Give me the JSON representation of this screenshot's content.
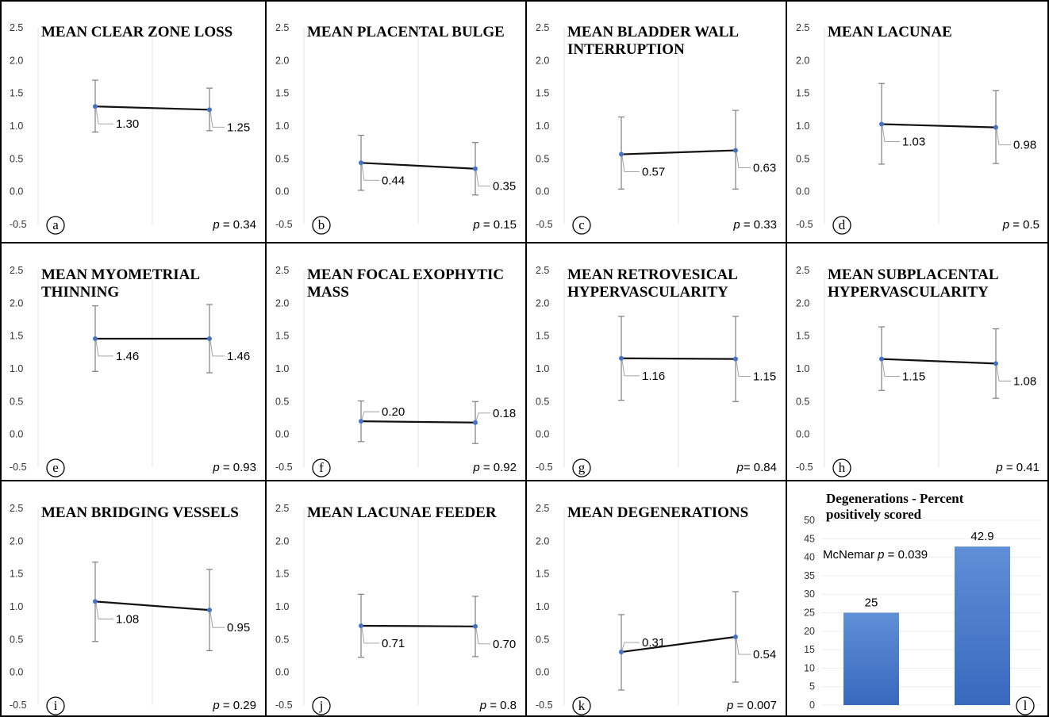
{
  "colors": {
    "marker": "#4472C4",
    "line": "#111111",
    "errorbar": "#7f7f7f",
    "bar_top": "#5f8fd6",
    "bar_bottom": "#3868bd",
    "border": "#000000"
  },
  "chart_data": [
    {
      "panel": "a",
      "type": "line",
      "title_lines": [
        "MEAN CLEAR ZONE LOSS"
      ],
      "ylim": [
        -0.5,
        2.5
      ],
      "yticks": [
        "2.5",
        "2.0",
        "1.5",
        "1.0",
        "0.5",
        "0.0",
        "-0.5"
      ],
      "values": [
        1.3,
        1.25
      ],
      "value_labels": [
        "1.30",
        "1.25"
      ],
      "error_low": [
        0.91,
        0.93
      ],
      "error_high": [
        1.7,
        1.58
      ],
      "p_prefix": "p",
      "p_rest": " = 0.34"
    },
    {
      "panel": "b",
      "type": "line",
      "title_lines": [
        "MEAN PLACENTAL BULGE"
      ],
      "ylim": [
        -0.5,
        2.5
      ],
      "yticks": [
        "2.5",
        "2.0",
        "1.5",
        "1.0",
        "0.5",
        "0.0",
        "-0.5"
      ],
      "values": [
        0.44,
        0.35
      ],
      "value_labels": [
        "0.44",
        "0.35"
      ],
      "error_low": [
        0.02,
        -0.05
      ],
      "error_high": [
        0.86,
        0.75
      ],
      "p_prefix": "p",
      "p_rest": " = 0.15"
    },
    {
      "panel": "c",
      "type": "line",
      "title_lines": [
        "MEAN BLADDER WALL",
        "INTERRUPTION"
      ],
      "ylim": [
        -0.5,
        2.5
      ],
      "yticks": [
        "2.5",
        "2.0",
        "1.5",
        "1.0",
        "0.5",
        "0.0",
        "-0.5"
      ],
      "values": [
        0.57,
        0.63
      ],
      "value_labels": [
        "0.57",
        "0.63"
      ],
      "error_low": [
        0.04,
        0.04
      ],
      "error_high": [
        1.14,
        1.24
      ],
      "p_prefix": "p",
      "p_rest": " = 0.33"
    },
    {
      "panel": "d",
      "type": "line",
      "title_lines": [
        "MEAN LACUNAE"
      ],
      "ylim": [
        -0.5,
        2.5
      ],
      "yticks": [
        "2.5",
        "2.0",
        "1.5",
        "1.0",
        "0.5",
        "0.0",
        "-0.5"
      ],
      "values": [
        1.03,
        0.98
      ],
      "value_labels": [
        "1.03",
        "0.98"
      ],
      "error_low": [
        0.42,
        0.43
      ],
      "error_high": [
        1.65,
        1.54
      ],
      "p_prefix": "p",
      "p_rest": " = 0.5"
    },
    {
      "panel": "e",
      "type": "line",
      "title_lines": [
        "MEAN MYOMETRIAL",
        "THINNING"
      ],
      "ylim": [
        -0.5,
        2.5
      ],
      "yticks": [
        "2.5",
        "2.0",
        "1.5",
        "1.0",
        "0.5",
        "0.0",
        "-0.5"
      ],
      "values": [
        1.46,
        1.46
      ],
      "value_labels": [
        "1.46",
        "1.46"
      ],
      "error_low": [
        0.96,
        0.94
      ],
      "error_high": [
        1.96,
        1.98
      ],
      "p_prefix": "p",
      "p_rest": " = 0.93"
    },
    {
      "panel": "f",
      "type": "line",
      "title_lines": [
        "MEAN FOCAL EXOPHYTIC",
        "MASS"
      ],
      "ylim": [
        -0.5,
        2.5
      ],
      "yticks": [
        "2.5",
        "2.0",
        "1.5",
        "1.0",
        "0.5",
        "0.0",
        "-0.5"
      ],
      "values": [
        0.2,
        0.18
      ],
      "value_labels": [
        "0.20",
        "0.18"
      ],
      "error_low": [
        -0.11,
        -0.14
      ],
      "error_high": [
        0.51,
        0.5
      ],
      "p_prefix": "p",
      "p_rest": " = 0.92"
    },
    {
      "panel": "g",
      "type": "line",
      "title_lines": [
        "MEAN RETROVESICAL",
        "HYPERVASCULARITY"
      ],
      "ylim": [
        -0.5,
        2.5
      ],
      "yticks": [
        "2.5",
        "2.0",
        "1.5",
        "1.0",
        "0.5",
        "0.0",
        "-0.5"
      ],
      "values": [
        1.16,
        1.15
      ],
      "value_labels": [
        "1.16",
        "1.15"
      ],
      "error_low": [
        0.52,
        0.5
      ],
      "error_high": [
        1.8,
        1.8
      ],
      "p_prefix": "p",
      "p_rest": "=  0.84"
    },
    {
      "panel": "h",
      "type": "line",
      "title_lines": [
        "MEAN SUBPLACENTAL",
        "HYPERVASCULARITY"
      ],
      "ylim": [
        -0.5,
        2.5
      ],
      "yticks": [
        "2.5",
        "2.0",
        "1.5",
        "1.0",
        "0.5",
        "0.0",
        "-0.5"
      ],
      "values": [
        1.15,
        1.08
      ],
      "value_labels": [
        "1.15",
        "1.08"
      ],
      "error_low": [
        0.67,
        0.55
      ],
      "error_high": [
        1.64,
        1.61
      ],
      "p_prefix": "p",
      "p_rest": " = 0.41"
    },
    {
      "panel": "i",
      "type": "line",
      "title_lines": [
        "MEAN BRIDGING VESSELS"
      ],
      "ylim": [
        -0.5,
        2.5
      ],
      "yticks": [
        "2.5",
        "2.0",
        "1.5",
        "1.0",
        "0.5",
        "0.0",
        "-0.5"
      ],
      "values": [
        1.08,
        0.95
      ],
      "value_labels": [
        "1.08",
        "0.95"
      ],
      "error_low": [
        0.47,
        0.33
      ],
      "error_high": [
        1.68,
        1.57
      ],
      "p_prefix": "p",
      "p_rest": " = 0.29"
    },
    {
      "panel": "j",
      "type": "line",
      "title_lines": [
        "MEAN LACUNAE FEEDER"
      ],
      "ylim": [
        -0.5,
        2.5
      ],
      "yticks": [
        "2.5",
        "2.0",
        "1.5",
        "1.0",
        "0.5",
        "0.0",
        "-0.5"
      ],
      "values": [
        0.71,
        0.7
      ],
      "value_labels": [
        "0.71",
        "0.70"
      ],
      "error_low": [
        0.23,
        0.24
      ],
      "error_high": [
        1.19,
        1.16
      ],
      "p_prefix": "p",
      "p_rest": " = 0.8"
    },
    {
      "panel": "k",
      "type": "line",
      "title_lines": [
        "MEAN DEGENERATIONS"
      ],
      "ylim": [
        -0.5,
        2.5
      ],
      "yticks": [
        "2.5",
        "2.0",
        "1.5",
        "1.0",
        "0.5",
        "0.0",
        "-0.5"
      ],
      "values": [
        0.31,
        0.54
      ],
      "value_labels": [
        "0.31",
        "0.54"
      ],
      "error_low": [
        -0.27,
        -0.15
      ],
      "error_high": [
        0.88,
        1.23
      ],
      "p_prefix": "p",
      "p_rest": " = 0.007"
    },
    {
      "panel": "l",
      "type": "bar",
      "title_lines": [
        "Degenerations - Percent",
        "positively scored"
      ],
      "ylim": [
        0,
        50
      ],
      "yticks": [
        "50",
        "45",
        "40",
        "35",
        "30",
        "25",
        "20",
        "15",
        "10",
        "5",
        "0"
      ],
      "values": [
        25,
        42.9
      ],
      "value_labels": [
        "25",
        "42.9"
      ],
      "annotation_prefix": "McNemar ",
      "annotation_p": "p",
      "annotation_rest": " = 0.039"
    }
  ]
}
